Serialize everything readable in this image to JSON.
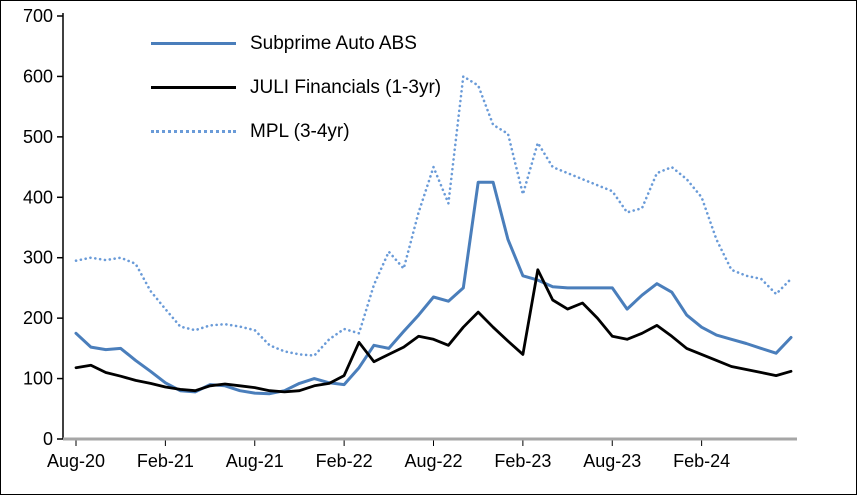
{
  "page": {
    "background": "#ffffff",
    "border_color": "#000000"
  },
  "chart_data": {
    "type": "line",
    "title": "",
    "xlabel": "",
    "ylabel": "",
    "ylim": [
      0,
      700
    ],
    "y_tick_step": 100,
    "grid": false,
    "legend_position": "top-left-inside",
    "x_ticks": [
      "Aug-20",
      "Feb-21",
      "Aug-21",
      "Feb-22",
      "Aug-22",
      "Feb-23",
      "Aug-23",
      "Feb-24"
    ],
    "x_tick_indices": [
      0,
      6,
      12,
      18,
      24,
      30,
      36,
      42
    ],
    "categories": [
      "Aug-20",
      "Sep-20",
      "Oct-20",
      "Nov-20",
      "Dec-20",
      "Jan-21",
      "Feb-21",
      "Mar-21",
      "Apr-21",
      "May-21",
      "Jun-21",
      "Jul-21",
      "Aug-21",
      "Sep-21",
      "Oct-21",
      "Nov-21",
      "Dec-21",
      "Jan-22",
      "Feb-22",
      "Mar-22",
      "Apr-22",
      "May-22",
      "Jun-22",
      "Jul-22",
      "Aug-22",
      "Sep-22",
      "Oct-22",
      "Nov-22",
      "Dec-22",
      "Jan-23",
      "Feb-23",
      "Mar-23",
      "Apr-23",
      "May-23",
      "Jun-23",
      "Jul-23",
      "Aug-23",
      "Sep-23",
      "Oct-23",
      "Nov-23",
      "Dec-23",
      "Jan-24",
      "Feb-24",
      "Mar-24",
      "Apr-24",
      "May-24",
      "Jun-24",
      "Jul-24",
      "Aug-24"
    ],
    "series": [
      {
        "name": "Subprime Auto ABS",
        "color": "#4a7ebb",
        "style": "solid",
        "width": 3,
        "values": [
          175,
          152,
          148,
          150,
          130,
          112,
          93,
          80,
          78,
          90,
          88,
          80,
          76,
          75,
          80,
          92,
          100,
          93,
          90,
          118,
          155,
          150,
          178,
          205,
          235,
          228,
          250,
          425,
          425,
          330,
          270,
          263,
          252,
          250,
          250,
          250,
          250,
          215,
          238,
          257,
          243,
          205,
          185,
          172,
          165,
          158,
          150,
          142,
          168
        ]
      },
      {
        "name": "JULI Financials (1-3yr)",
        "color": "#000000",
        "style": "solid",
        "width": 2.8,
        "values": [
          118,
          122,
          110,
          104,
          97,
          92,
          86,
          82,
          80,
          88,
          91,
          88,
          85,
          80,
          78,
          80,
          88,
          92,
          105,
          160,
          128,
          140,
          152,
          170,
          165,
          155,
          185,
          210,
          185,
          162,
          140,
          280,
          230,
          215,
          225,
          200,
          170,
          165,
          175,
          188,
          170,
          150,
          140,
          130,
          120,
          115,
          110,
          105,
          112
        ]
      },
      {
        "name": "MPL (3-4yr)",
        "color": "#6a9bd8",
        "style": "dotted",
        "width": 2.6,
        "values": [
          295,
          300,
          296,
          300,
          290,
          245,
          215,
          186,
          180,
          188,
          190,
          186,
          180,
          155,
          145,
          140,
          138,
          165,
          182,
          175,
          255,
          310,
          282,
          375,
          450,
          390,
          600,
          585,
          520,
          505,
          405,
          490,
          450,
          440,
          430,
          420,
          410,
          375,
          382,
          440,
          450,
          430,
          400,
          330,
          280,
          270,
          265,
          240,
          265
        ]
      }
    ],
    "axis": {
      "y_axis_color": "#000000",
      "x_axis_color": "#a6a6a6",
      "tick_label_color": "#000000",
      "tick_label_font_size": 18
    }
  }
}
